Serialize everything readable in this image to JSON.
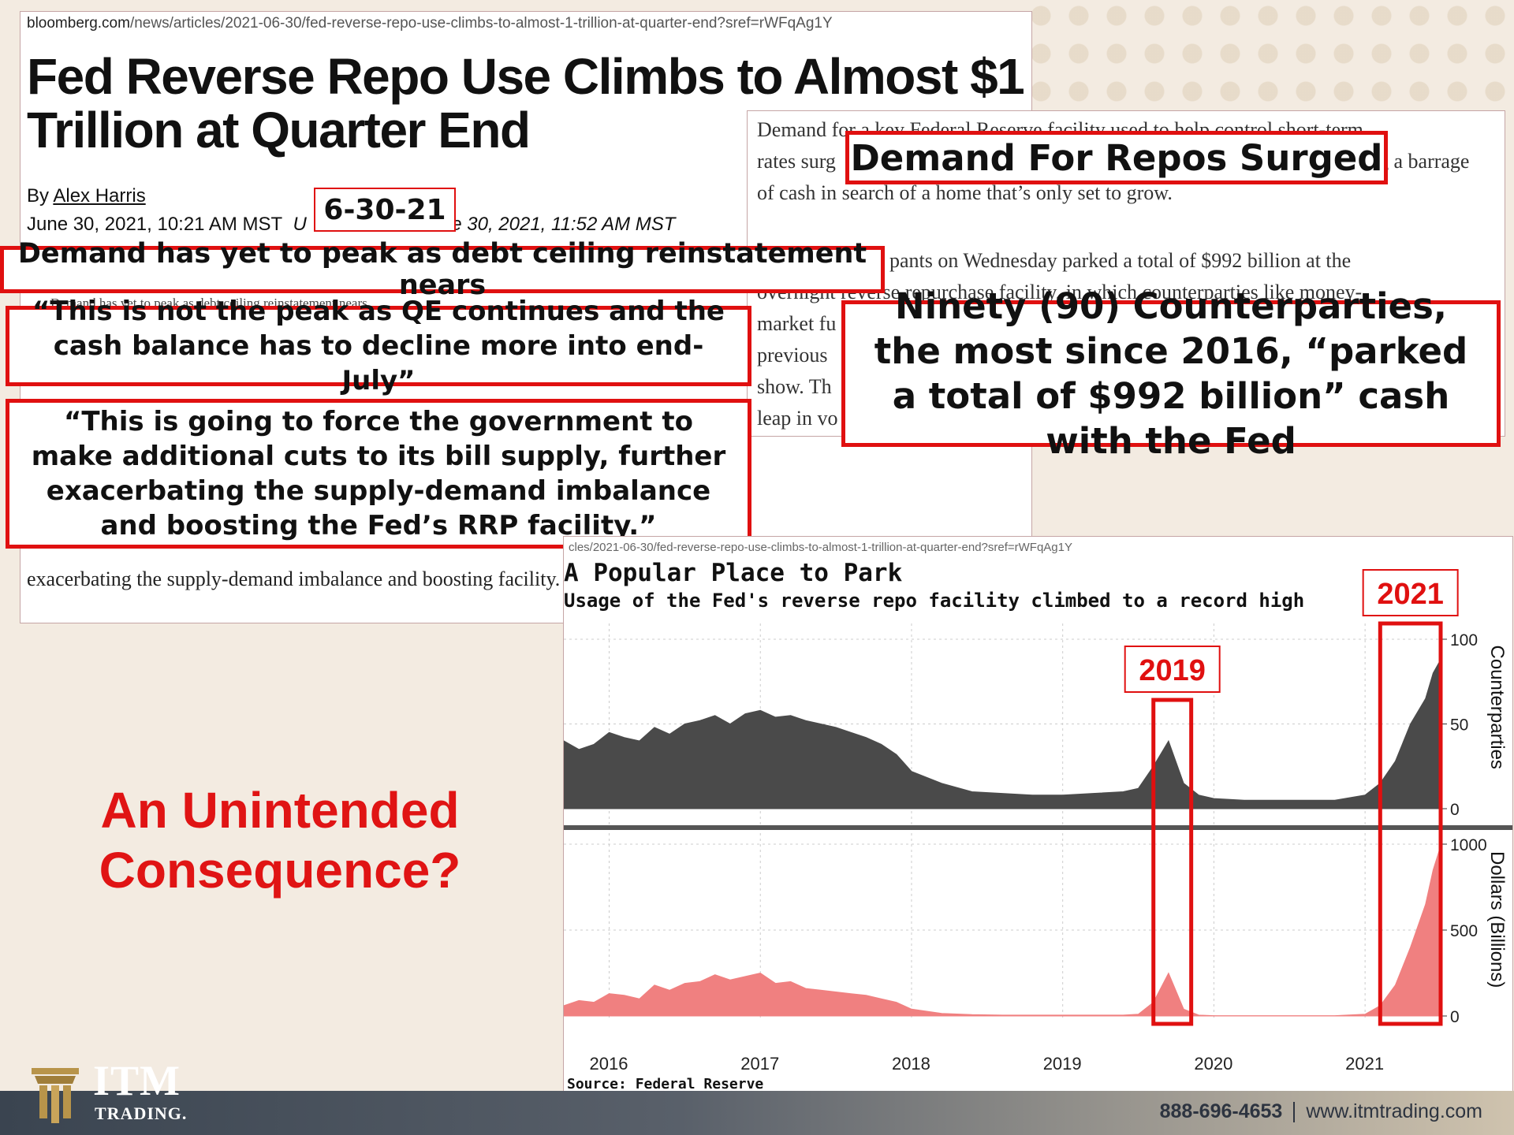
{
  "article": {
    "url_domain": "bloomberg.com",
    "url_path": "/news/articles/2021-06-30/fed-reverse-repo-use-climbs-to-almost-1-trillion-at-quarter-end?sref=rWFqAg1Y",
    "headline": "Fed Reverse Repo Use Climbs to Almost $1 Trillion at Quarter End",
    "byline_prefix": "By",
    "author": "Alex Harris",
    "date_text": "June 30, 2021, 10:21 AM MST",
    "updated_partial_left": "U",
    "updated_partial_right": "e 30, 2021, 11:52 AM MST",
    "bullet_hidden": "Demand has yet to peak as debt ceiling reinstatement nears",
    "lower_text": "exacerbating the supply-demand imbalance and boosting facility."
  },
  "body_right": {
    "line1": "Demand for a key Federal Reserve facility used to help control short-term",
    "line2": "rates surg",
    "line2_end": "g a barrage",
    "line3": "of cash in search of a home that’s only set to grow.",
    "line4": "pants on Wednesday parked a total of $992 billion at the",
    "line5": "overnight reverse repurchase facility, in which counterparties like money-",
    "line6": "market fu",
    "line7": "previous",
    "line8": "show. Th",
    "line9": "leap in vo"
  },
  "callouts": {
    "date_stamp": "6-30-21",
    "demand_surged": "Demand For Repos Surged",
    "yet_to_peak": "Demand has yet to peak as debt ceiling reinstatement nears",
    "quote_peak": "“This is not the peak as QE continues and the cash balance has to decline more into end-July”",
    "quote_force": "“This is going to force the government to make additional cuts to its bill supply, further exacerbating the supply-demand imbalance and boosting the Fed’s RRP facility.”",
    "counterparties": "Ninety (90) Counterparties, the most since 2016, “parked a total of $992 billion” cash with the Fed",
    "unintended": "An Unintended Consequence?"
  },
  "chart_data": {
    "type": "area",
    "url_fragment": "cles/2021-06-30/fed-reverse-repo-use-climbs-to-almost-1-trillion-at-quarter-end?sref=rWFqAg1Y",
    "title": "A Popular Place to Park",
    "subtitle": "Usage of the Fed's reverse repo facility climbed to a record high",
    "source": "Source: Federal Reserve",
    "x_ticks": [
      "2016",
      "2017",
      "2018",
      "2019",
      "2020",
      "2021"
    ],
    "xlim": [
      2015.7,
      2021.5
    ],
    "panels": [
      {
        "name": "Counterparties",
        "ylabel": "Counterparties",
        "ylim": [
          0,
          100
        ],
        "y_ticks": [
          0,
          50,
          100
        ],
        "color": "#4a4a4a",
        "x": [
          2015.7,
          2015.8,
          2015.9,
          2016.0,
          2016.1,
          2016.2,
          2016.3,
          2016.4,
          2016.5,
          2016.6,
          2016.7,
          2016.8,
          2016.9,
          2017.0,
          2017.1,
          2017.2,
          2017.3,
          2017.4,
          2017.5,
          2017.6,
          2017.7,
          2017.8,
          2017.9,
          2018.0,
          2018.2,
          2018.4,
          2018.6,
          2018.8,
          2019.0,
          2019.2,
          2019.4,
          2019.5,
          2019.6,
          2019.7,
          2019.8,
          2019.9,
          2020.0,
          2020.2,
          2020.4,
          2020.6,
          2020.8,
          2021.0,
          2021.1,
          2021.2,
          2021.3,
          2021.4,
          2021.45,
          2021.5
        ],
        "values": [
          40,
          35,
          38,
          45,
          42,
          40,
          48,
          44,
          50,
          52,
          55,
          50,
          56,
          58,
          54,
          55,
          52,
          50,
          48,
          45,
          42,
          38,
          32,
          22,
          15,
          10,
          9,
          8,
          8,
          9,
          10,
          12,
          25,
          40,
          15,
          8,
          6,
          5,
          5,
          5,
          5,
          8,
          15,
          28,
          50,
          65,
          80,
          88
        ]
      },
      {
        "name": "Dollars (Billions)",
        "ylabel": "Dollars (Billions)",
        "ylim": [
          0,
          1000
        ],
        "y_ticks": [
          0,
          500,
          1000
        ],
        "color": "#f08080",
        "x": [
          2015.7,
          2015.8,
          2015.9,
          2016.0,
          2016.1,
          2016.2,
          2016.3,
          2016.4,
          2016.5,
          2016.6,
          2016.7,
          2016.8,
          2016.9,
          2017.0,
          2017.1,
          2017.2,
          2017.3,
          2017.4,
          2017.5,
          2017.6,
          2017.7,
          2017.8,
          2017.9,
          2018.0,
          2018.2,
          2018.4,
          2018.6,
          2018.8,
          2019.0,
          2019.2,
          2019.4,
          2019.5,
          2019.6,
          2019.7,
          2019.8,
          2019.9,
          2020.0,
          2020.2,
          2020.4,
          2020.6,
          2020.8,
          2021.0,
          2021.1,
          2021.2,
          2021.3,
          2021.4,
          2021.45,
          2021.5
        ],
        "values": [
          60,
          90,
          80,
          130,
          120,
          100,
          180,
          150,
          190,
          200,
          240,
          210,
          230,
          250,
          190,
          200,
          160,
          150,
          140,
          130,
          120,
          100,
          80,
          40,
          15,
          8,
          5,
          5,
          5,
          5,
          5,
          10,
          80,
          250,
          40,
          5,
          2,
          2,
          2,
          2,
          2,
          10,
          60,
          180,
          400,
          650,
          850,
          990
        ]
      }
    ],
    "highlights": [
      {
        "label": "2019",
        "x_range": [
          2019.6,
          2019.85
        ]
      },
      {
        "label": "2021",
        "x_range": [
          2021.1,
          2021.5
        ]
      }
    ]
  },
  "footer": {
    "logo_main": "ITM",
    "logo_sub": "TRADING.",
    "phone": "888-696-4653",
    "website": "www.itmtrading.com"
  }
}
